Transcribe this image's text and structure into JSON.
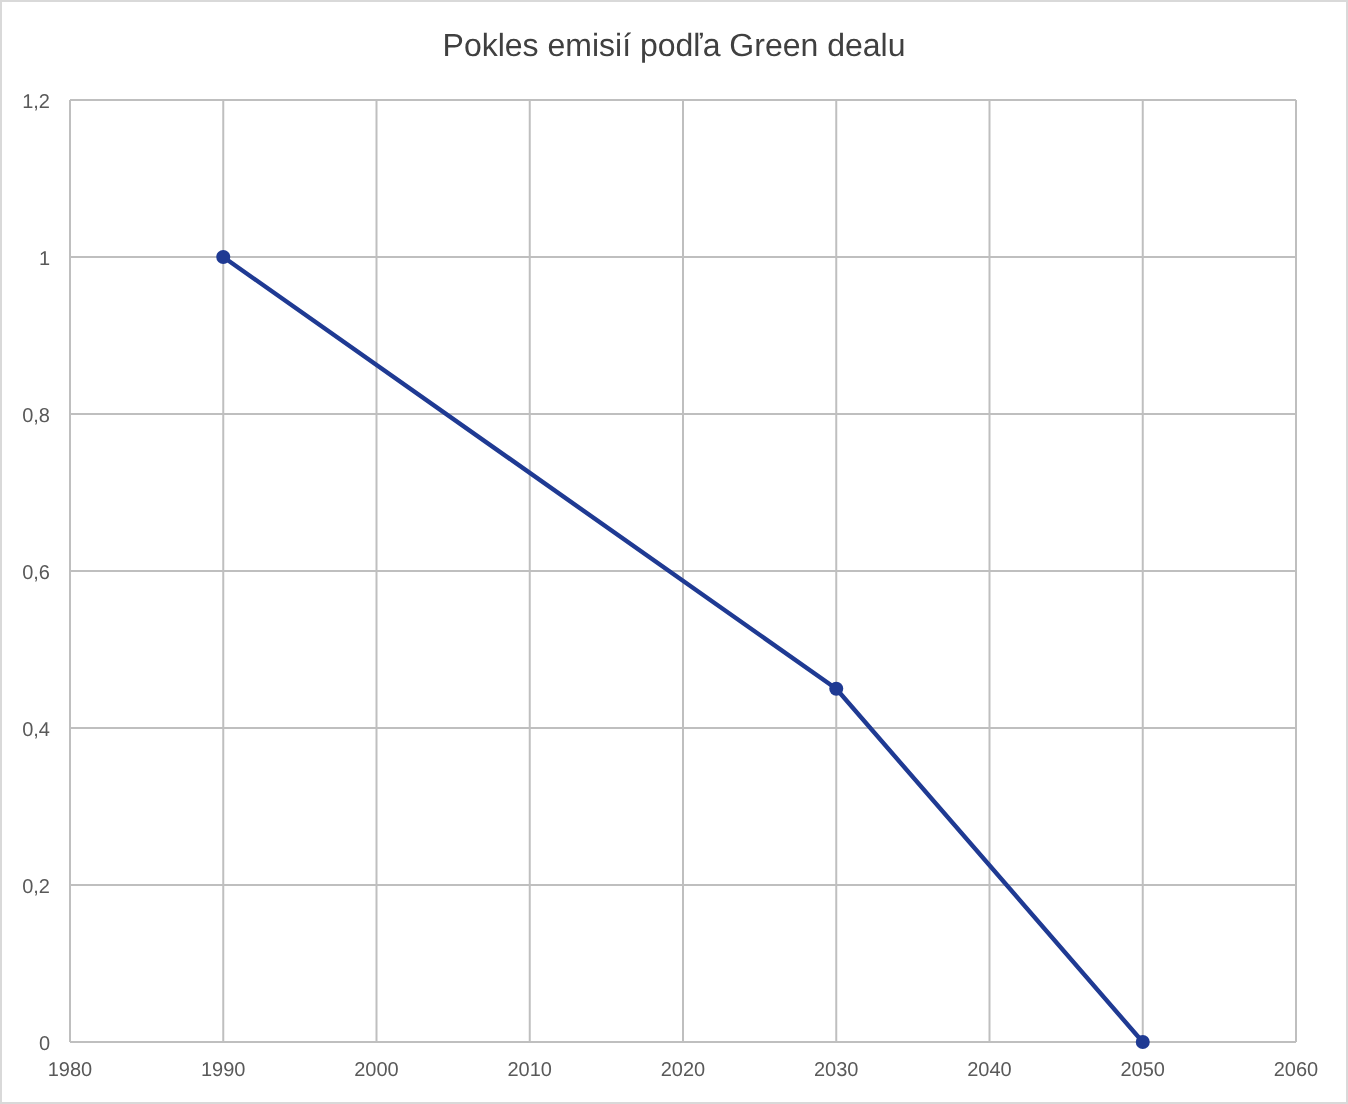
{
  "chart_data": {
    "type": "line",
    "title": "Pokles emisií podľa Green dealu",
    "x": [
      1990,
      2030,
      2050
    ],
    "series": [
      {
        "color": "#1f3a93",
        "values": [
          1,
          0.45,
          0
        ]
      }
    ],
    "xlim": [
      1980,
      2060
    ],
    "xticks": [
      1980,
      1990,
      2000,
      2010,
      2020,
      2030,
      2040,
      2050,
      2060
    ],
    "ylim": [
      0,
      1.2
    ],
    "yticks": [
      0,
      {
        "value": 0.2,
        "label": "0,2"
      },
      {
        "value": 0.4,
        "label": "0,4"
      },
      {
        "value": 0.6,
        "label": "0,6"
      },
      {
        "value": 0.8,
        "label": "0,8"
      },
      1,
      {
        "value": 1.2,
        "label": "1,2"
      }
    ],
    "grid": true,
    "marker": "circle",
    "line_style": "solid"
  }
}
